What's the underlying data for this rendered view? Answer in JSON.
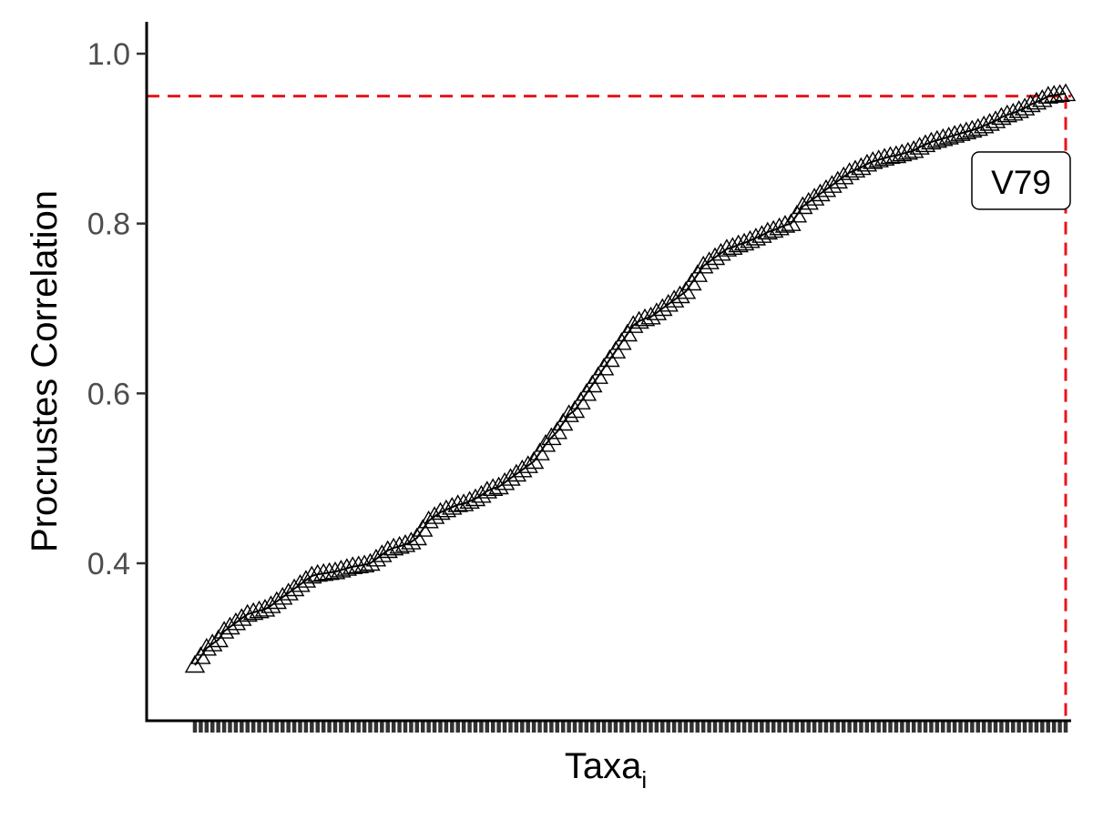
{
  "chart_data": {
    "type": "line",
    "xlabel": "Taxa",
    "xlabel_subscript": "i",
    "ylabel": "Procrustes Correlation",
    "ylim": [
      0.21,
      1.04
    ],
    "yticks": [
      0.4,
      0.6,
      0.8,
      1.0
    ],
    "ytick_labels": [
      "0.4",
      "0.6",
      "0.8",
      "1.0"
    ],
    "grid": false,
    "legend": "none",
    "marker": "open-triangle",
    "threshold": 0.95,
    "highlight": {
      "label": "V79",
      "value": 0.953
    },
    "series": [
      {
        "values": [
          0.28,
          0.29,
          0.3,
          0.305,
          0.31,
          0.32,
          0.325,
          0.33,
          0.335,
          0.34,
          0.342,
          0.344,
          0.346,
          0.35,
          0.355,
          0.36,
          0.365,
          0.37,
          0.375,
          0.38,
          0.385,
          0.387,
          0.388,
          0.389,
          0.39,
          0.392,
          0.394,
          0.396,
          0.397,
          0.398,
          0.4,
          0.405,
          0.41,
          0.415,
          0.418,
          0.42,
          0.422,
          0.425,
          0.43,
          0.44,
          0.45,
          0.455,
          0.46,
          0.463,
          0.466,
          0.469,
          0.47,
          0.473,
          0.476,
          0.48,
          0.485,
          0.488,
          0.49,
          0.495,
          0.5,
          0.505,
          0.51,
          0.515,
          0.52,
          0.53,
          0.54,
          0.548,
          0.555,
          0.565,
          0.575,
          0.58,
          0.59,
          0.6,
          0.61,
          0.62,
          0.63,
          0.64,
          0.65,
          0.66,
          0.67,
          0.68,
          0.685,
          0.688,
          0.69,
          0.695,
          0.7,
          0.705,
          0.71,
          0.715,
          0.72,
          0.73,
          0.74,
          0.75,
          0.755,
          0.76,
          0.765,
          0.77,
          0.772,
          0.775,
          0.777,
          0.78,
          0.783,
          0.786,
          0.79,
          0.792,
          0.795,
          0.798,
          0.8,
          0.81,
          0.82,
          0.825,
          0.83,
          0.835,
          0.84,
          0.845,
          0.85,
          0.855,
          0.86,
          0.863,
          0.866,
          0.87,
          0.873,
          0.875,
          0.877,
          0.879,
          0.88,
          0.882,
          0.884,
          0.886,
          0.89,
          0.893,
          0.896,
          0.898,
          0.9,
          0.902,
          0.904,
          0.906,
          0.908,
          0.91,
          0.912,
          0.915,
          0.918,
          0.921,
          0.925,
          0.928,
          0.93,
          0.933,
          0.936,
          0.94,
          0.943,
          0.946,
          0.95,
          0.951,
          0.952,
          0.953
        ]
      }
    ]
  }
}
